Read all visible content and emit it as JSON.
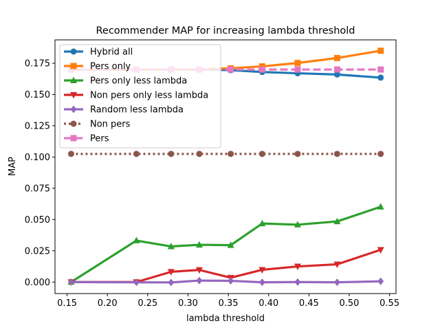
{
  "chart_data": {
    "type": "line",
    "title": "Recommender MAP for increasing lambda threshold",
    "xlabel": "lambda threshold",
    "ylabel": "MAP",
    "xlim": [
      0.135,
      0.558
    ],
    "ylim": [
      -0.0092,
      0.1937
    ],
    "xticks": [
      0.15,
      0.2,
      0.25,
      0.3,
      0.35,
      0.4,
      0.45,
      0.5,
      0.55
    ],
    "xtick_labels": [
      "0.15",
      "0.20",
      "0.25",
      "0.30",
      "0.35",
      "0.40",
      "0.45",
      "0.50",
      "0.55"
    ],
    "yticks": [
      0.0,
      0.025,
      0.05,
      0.075,
      0.1,
      0.125,
      0.15,
      0.175
    ],
    "ytick_labels": [
      "0.000",
      "0.025",
      "0.050",
      "0.075",
      "0.100",
      "0.125",
      "0.150",
      "0.175"
    ],
    "grid": false,
    "legend_position": "top-left",
    "x": [
      0.155,
      0.236,
      0.279,
      0.314,
      0.353,
      0.392,
      0.436,
      0.485,
      0.539
    ],
    "series": [
      {
        "name": "Hybrid all",
        "color": "#1f77b4",
        "marker": "circle",
        "linestyle": "solid",
        "values": [
          0.17,
          0.17,
          0.17,
          0.17,
          0.1695,
          0.168,
          0.167,
          0.166,
          0.1635
        ]
      },
      {
        "name": "Pers only",
        "color": "#ff7f0e",
        "marker": "square",
        "linestyle": "solid",
        "values": [
          0.17,
          0.17,
          0.17,
          0.17,
          0.171,
          0.1725,
          0.1752,
          0.1792,
          0.185
        ]
      },
      {
        "name": "Pers only less lambda",
        "color": "#2ca02c",
        "marker": "triangle-up",
        "linestyle": "solid",
        "values": [
          0.0,
          0.0332,
          0.0285,
          0.0298,
          0.0295,
          0.0468,
          0.0459,
          0.0485,
          0.0602
        ]
      },
      {
        "name": "Non pers only less lambda",
        "color": "#d62728",
        "marker": "triangle-down",
        "linestyle": "solid",
        "values": [
          0.0,
          0.0,
          0.0082,
          0.0097,
          0.0035,
          0.0098,
          0.0125,
          0.0142,
          0.0258
        ]
      },
      {
        "name": "Random less lambda",
        "color": "#9467bd",
        "marker": "diamond",
        "linestyle": "solid",
        "values": [
          0.0,
          -0.0002,
          -0.0003,
          0.0012,
          0.001,
          -0.0002,
          0.0,
          -0.0002,
          0.0006
        ]
      },
      {
        "name": "Non pers",
        "color": "#8c564b",
        "marker": "circle",
        "linestyle": "dotted",
        "values": [
          0.1025,
          0.1025,
          0.1025,
          0.1025,
          0.1025,
          0.1025,
          0.1025,
          0.1025,
          0.1025
        ]
      },
      {
        "name": "Pers",
        "color": "#e377c2",
        "marker": "square",
        "linestyle": "dashed",
        "values": [
          0.17,
          0.17,
          0.17,
          0.17,
          0.17,
          0.17,
          0.17,
          0.17,
          0.17
        ]
      }
    ]
  }
}
